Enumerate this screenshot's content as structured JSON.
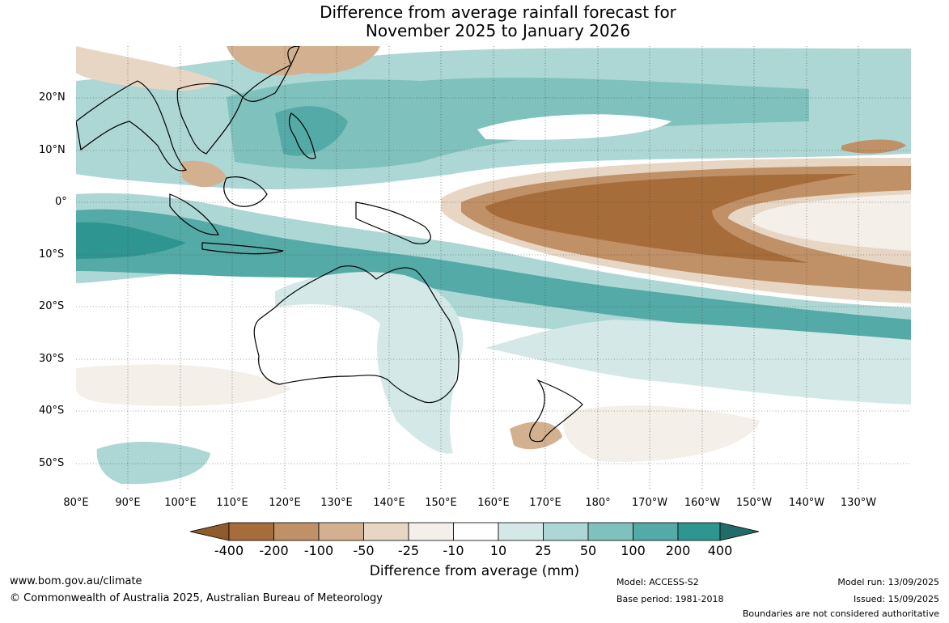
{
  "title": {
    "line1": "Difference from average rainfall forecast for",
    "line2": "November 2025 to January 2026"
  },
  "latitude_labels": [
    "20°N",
    "10°N",
    "0°",
    "10°S",
    "20°S",
    "30°S",
    "40°S",
    "50°S"
  ],
  "longitude_labels": [
    "80°E",
    "90°E",
    "100°E",
    "110°E",
    "120°E",
    "130°E",
    "140°E",
    "150°E",
    "160°E",
    "170°E",
    "180°",
    "170°W",
    "160°W",
    "150°W",
    "140°W",
    "130°W"
  ],
  "colorbar": {
    "title": "Difference from average (mm)",
    "tick_labels": [
      "-400",
      "-200",
      "-100",
      "-50",
      "-25",
      "-10",
      "10",
      "25",
      "50",
      "100",
      "200",
      "400"
    ],
    "colors": [
      "#8f5a2c",
      "#a66c39",
      "#c09067",
      "#d3b08f",
      "#e8d6c4",
      "#f4efe9",
      "#ffffff",
      "#d4e9e7",
      "#acd7d4",
      "#7fc1bc",
      "#53aaa6",
      "#2f9591",
      "#1f6c69"
    ]
  },
  "footer": {
    "website": "www.bom.gov.au/climate",
    "copyright": "© Commonwealth of Australia 2025, Australian Bureau of Meteorology",
    "model": "Model: ACCESS-S2",
    "base_period": "Base period: 1981-2018",
    "model_run": "Model run: 13/09/2025",
    "issued": "Issued: 15/09/2025",
    "disclaimer": "Boundaries are not considered authoritative"
  }
}
